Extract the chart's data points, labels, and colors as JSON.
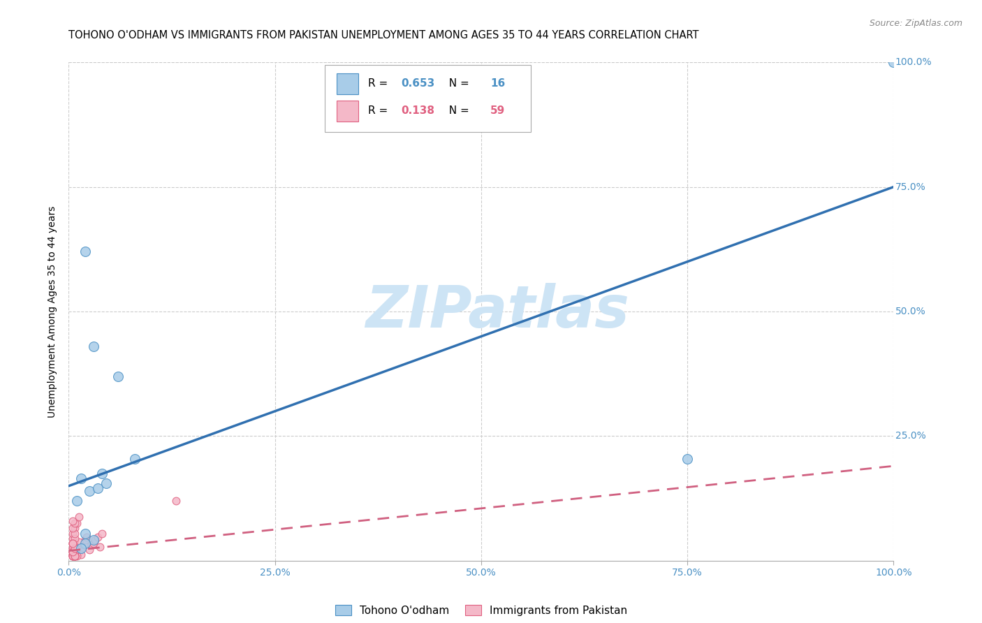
{
  "title": "TOHONO O'ODHAM VS IMMIGRANTS FROM PAKISTAN UNEMPLOYMENT AMONG AGES 35 TO 44 YEARS CORRELATION CHART",
  "source": "Source: ZipAtlas.com",
  "ylabel": "Unemployment Among Ages 35 to 44 years",
  "watermark": "ZIPatlas",
  "legend1_r": "0.653",
  "legend1_n": "16",
  "legend2_r": "0.138",
  "legend2_n": "59",
  "legend1_label": "Tohono O'odham",
  "legend2_label": "Immigrants from Pakistan",
  "blue_fill": "#a8cce8",
  "pink_fill": "#f4b8c8",
  "blue_edge": "#4a90c4",
  "pink_edge": "#e06080",
  "blue_line_color": "#3070b0",
  "pink_line_color": "#d06080",
  "xlim": [
    0,
    1.0
  ],
  "ylim": [
    0,
    1.0
  ],
  "xticks": [
    0,
    0.25,
    0.5,
    0.75,
    1.0
  ],
  "yticks": [
    0.25,
    0.5,
    0.75,
    1.0
  ],
  "xticklabels": [
    "0.0%",
    "25.0%",
    "50.0%",
    "75.0%",
    "100.0%"
  ],
  "yticklabels": [
    "25.0%",
    "50.0%",
    "75.0%",
    "100.0%"
  ],
  "tohono_x": [
    0.02,
    0.03,
    0.06,
    0.04,
    0.015,
    0.025,
    0.01,
    0.045,
    0.035,
    0.08,
    0.75,
    1.0,
    0.02,
    0.03,
    0.02,
    0.015
  ],
  "tohono_y": [
    0.62,
    0.43,
    0.37,
    0.175,
    0.165,
    0.14,
    0.12,
    0.155,
    0.145,
    0.205,
    0.205,
    1.0,
    0.055,
    0.042,
    0.035,
    0.025
  ],
  "pakistan_x": [
    0.005,
    0.007,
    0.01,
    0.012,
    0.015,
    0.018,
    0.02,
    0.022,
    0.025,
    0.028,
    0.03,
    0.032,
    0.035,
    0.038,
    0.04,
    0.005,
    0.007,
    0.01,
    0.012,
    0.015,
    0.005,
    0.007,
    0.01,
    0.012,
    0.005,
    0.007,
    0.005,
    0.007,
    0.005,
    0.007,
    0.01,
    0.005,
    0.007,
    0.005,
    0.007,
    0.005,
    0.007,
    0.005,
    0.007,
    0.005,
    0.007,
    0.005,
    0.007,
    0.005,
    0.007,
    0.005,
    0.007,
    0.005,
    0.007,
    0.005,
    0.007,
    0.005,
    0.007,
    0.005,
    0.007,
    0.005,
    0.007,
    0.13,
    0.005
  ],
  "pakistan_y": [
    0.045,
    0.035,
    0.025,
    0.018,
    0.025,
    0.032,
    0.042,
    0.048,
    0.022,
    0.032,
    0.035,
    0.042,
    0.048,
    0.028,
    0.055,
    0.012,
    0.018,
    0.028,
    0.038,
    0.012,
    0.055,
    0.065,
    0.075,
    0.088,
    0.01,
    0.01,
    0.025,
    0.018,
    0.035,
    0.018,
    0.01,
    0.01,
    0.01,
    0.018,
    0.025,
    0.012,
    0.018,
    0.01,
    0.01,
    0.018,
    0.028,
    0.035,
    0.018,
    0.01,
    0.018,
    0.025,
    0.01,
    0.018,
    0.045,
    0.035,
    0.01,
    0.018,
    0.025,
    0.035,
    0.055,
    0.065,
    0.075,
    0.12,
    0.08
  ],
  "blue_trend_x": [
    0.0,
    1.0
  ],
  "blue_trend_y": [
    0.15,
    0.75
  ],
  "pink_trend_x": [
    0.0,
    1.0
  ],
  "pink_trend_y": [
    0.02,
    0.19
  ],
  "dot_size_blue": 100,
  "dot_size_pink": 60,
  "background_color": "#ffffff",
  "grid_color": "#cccccc",
  "tick_color": "#4a90c4",
  "title_fontsize": 10.5,
  "axis_fontsize": 10,
  "tick_fontsize": 10,
  "source_fontsize": 9,
  "legend_fontsize": 11,
  "watermark_fontsize": 60,
  "watermark_color": "#cde4f5"
}
